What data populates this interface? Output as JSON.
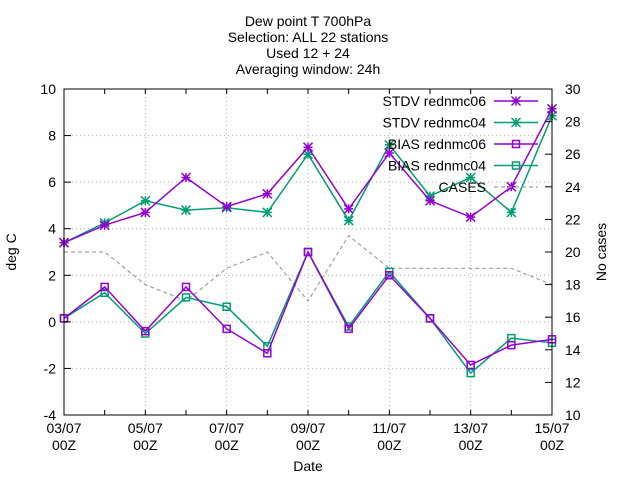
{
  "title_lines": [
    "Dew point T 700hPa",
    "Selection: ALL      22 stations",
    "Used 12 + 24",
    "Averaging window: 24h"
  ],
  "chart_data": {
    "type": "line",
    "xlabel": "Date",
    "ylabel": "deg C",
    "y2label": "No cases",
    "ylim": [
      -4,
      10
    ],
    "y2lim": [
      10,
      30
    ],
    "y_ticks": [
      -4,
      -2,
      0,
      2,
      4,
      6,
      8,
      10
    ],
    "y2_ticks": [
      10,
      12,
      14,
      16,
      18,
      20,
      22,
      24,
      26,
      28,
      30
    ],
    "x": [
      "03/07 00Z",
      "04/07 00Z",
      "05/07 00Z",
      "06/07 00Z",
      "07/07 00Z",
      "08/07 00Z",
      "09/07 00Z",
      "10/07 00Z",
      "11/07 00Z",
      "12/07 00Z",
      "13/07 00Z",
      "14/07 00Z",
      "15/07 00Z"
    ],
    "x_tick_labels": [
      {
        "date": "03/07",
        "time": "00Z"
      },
      {
        "date": "05/07",
        "time": "00Z"
      },
      {
        "date": "07/07",
        "time": "00Z"
      },
      {
        "date": "09/07",
        "time": "00Z"
      },
      {
        "date": "11/07",
        "time": "00Z"
      },
      {
        "date": "13/07",
        "time": "00Z"
      },
      {
        "date": "15/07",
        "time": "00Z"
      }
    ],
    "grid": true,
    "legend_position": "top-right",
    "series": [
      {
        "name": "STDV rednmc06",
        "axis": "y",
        "marker": "star",
        "dash": "solid",
        "color": "#9400d3",
        "values": [
          3.4,
          4.15,
          4.7,
          6.2,
          4.95,
          5.5,
          7.5,
          4.85,
          7.25,
          5.2,
          4.5,
          5.8,
          9.15
        ]
      },
      {
        "name": "STDV rednmc04",
        "axis": "y",
        "marker": "star",
        "dash": "solid",
        "color": "#009e73",
        "values": [
          3.4,
          4.25,
          5.2,
          4.8,
          4.9,
          4.7,
          7.2,
          4.35,
          7.6,
          5.4,
          6.2,
          4.7,
          8.85
        ]
      },
      {
        "name": "BIAS rednmc06",
        "axis": "y",
        "marker": "square",
        "dash": "solid",
        "color": "#9400d3",
        "values": [
          0.15,
          1.5,
          -0.4,
          1.5,
          -0.3,
          -1.35,
          3.0,
          -0.3,
          2.0,
          0.15,
          -1.85,
          -1.0,
          -0.75
        ]
      },
      {
        "name": "BIAS rednmc04",
        "axis": "y",
        "marker": "square",
        "dash": "solid",
        "color": "#009e73",
        "values": [
          0.15,
          1.25,
          -0.5,
          1.05,
          0.65,
          -1.05,
          3.0,
          -0.2,
          2.15,
          0.15,
          -2.2,
          -0.7,
          -0.9
        ]
      },
      {
        "name": "CASES",
        "axis": "y2",
        "marker": "none",
        "dash": "dashed",
        "color": "#a0a0a0",
        "values": [
          20,
          20,
          18,
          17,
          19,
          20,
          17,
          21,
          19,
          19,
          19,
          19,
          18
        ]
      }
    ]
  }
}
